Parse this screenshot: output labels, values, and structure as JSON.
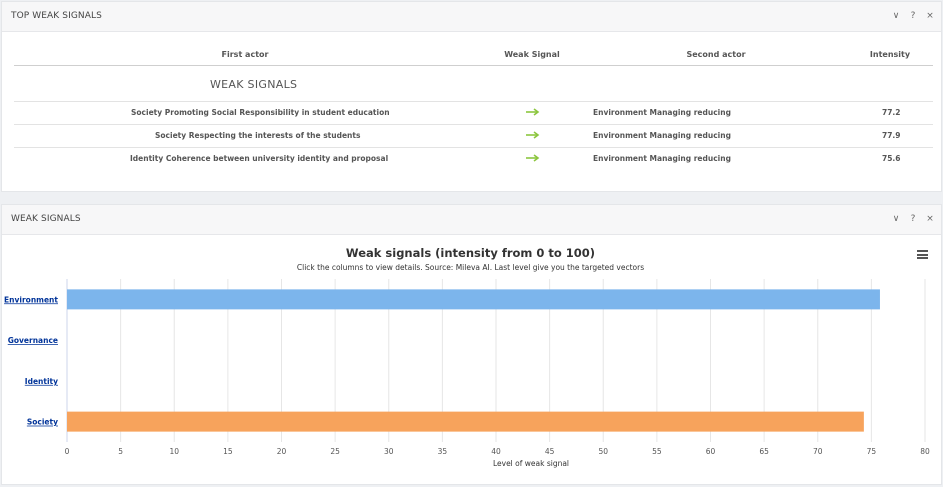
{
  "top_panel": {
    "title": "TOP WEAK SIGNALS",
    "tools": [
      "∨",
      "?",
      "×"
    ],
    "columns": [
      "First actor",
      "Weak Signal",
      "Second actor",
      "Intensity"
    ],
    "group_label": "WEAK SIGNALS",
    "rows": [
      {
        "first_actor": "Society Promoting Social Responsibility in student education",
        "second_actor": "Environment Managing reducing",
        "intensity": "77.2"
      },
      {
        "first_actor": "Society Respecting the interests of the students",
        "second_actor": "Environment Managing reducing",
        "intensity": "77.9"
      },
      {
        "first_actor": "Identity Coherence between university identity and proposal",
        "second_actor": "Environment Managing reducing",
        "intensity": "75.6"
      }
    ],
    "arrow_color": "#8cc63f"
  },
  "bottom_panel": {
    "title": "WEAK SIGNALS",
    "tools": [
      "∨",
      "?",
      "×"
    ]
  },
  "chart_data": {
    "type": "bar",
    "orientation": "horizontal",
    "title": "Weak signals (intensity from 0 to 100)",
    "subtitle": "Click the columns to view details. Source: Mileva AI. Last level give you the targeted vectors",
    "categories": [
      "Environment",
      "Governance",
      "Identity",
      "Society"
    ],
    "values": [
      75.8,
      null,
      null,
      74.3
    ],
    "colors": [
      "#7cb5ec",
      null,
      null,
      "#f7a35c"
    ],
    "xlabel": "Level of weak signal",
    "ylabel": "",
    "xlim": [
      0,
      80
    ],
    "xticks": [
      0,
      5,
      10,
      15,
      20,
      25,
      30,
      35,
      40,
      45,
      50,
      55,
      60,
      65,
      70,
      75,
      80
    ],
    "grid": true,
    "legend": "none"
  }
}
